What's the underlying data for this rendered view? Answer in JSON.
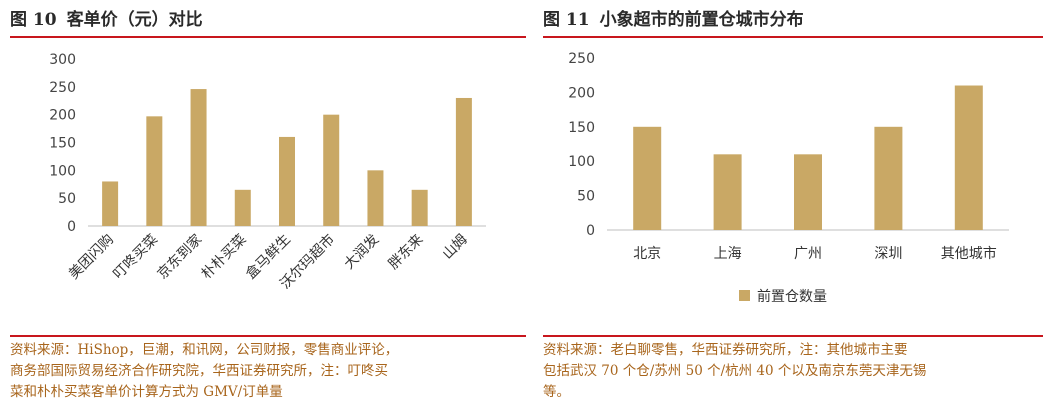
{
  "colors": {
    "bar": "#c9a865",
    "accent_rule": "#c8161d",
    "source_text": "#a8651c",
    "axis": "#bfbfbf"
  },
  "left": {
    "fig_num": "图 10",
    "fig_title": "客单价（元）对比",
    "source": "资料来源：HiShop，巨潮，和讯网，公司财报，零售商业评论，\n商务部国际贸易经济合作研究院，华西证券研究所，注：叮咚买\n菜和朴朴买菜客单价计算方式为 GMV/订单量"
  },
  "right": {
    "fig_num": "图 11",
    "fig_title": "小象超市的前置仓城市分布",
    "source": "资料来源：老白聊零售，华西证券研究所，注：其他城市主要\n包括武汉 70 个仓/苏州 50 个/杭州 40 个以及南京东莞天津无锡\n等。"
  },
  "chart_data": [
    {
      "type": "bar",
      "title": "客单价（元）对比",
      "categories": [
        "美团闪购",
        "叮咚买菜",
        "京东到家",
        "朴朴买菜",
        "盒马鲜生",
        "沃尔玛超市",
        "大润发",
        "胖东来",
        "山姆"
      ],
      "values": [
        80,
        197,
        246,
        65,
        160,
        200,
        100,
        65,
        230
      ],
      "ylim": [
        0,
        300
      ],
      "yticks": [
        0,
        50,
        100,
        150,
        200,
        250,
        300
      ],
      "grid": false,
      "legend": null
    },
    {
      "type": "bar",
      "title": "小象超市的前置仓城市分布",
      "categories": [
        "北京",
        "上海",
        "广州",
        "深圳",
        "其他城市"
      ],
      "series": [
        {
          "name": "前置仓数量",
          "values": [
            150,
            110,
            110,
            150,
            210
          ]
        }
      ],
      "ylim": [
        0,
        250
      ],
      "yticks": [
        0,
        50,
        100,
        150,
        200,
        250
      ],
      "grid": false,
      "legend": "bottom"
    }
  ]
}
